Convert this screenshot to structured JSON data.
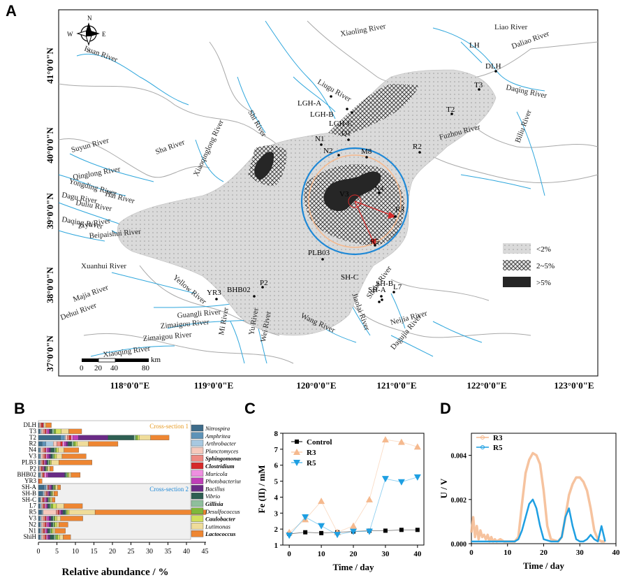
{
  "panels": {
    "a": "A",
    "b": "B",
    "c": "C",
    "d": "D"
  },
  "map": {
    "lat_ticks": [
      "41°0'0\"N",
      "40°0'0\"N",
      "39°0'0\"N",
      "38°0'0\"N",
      "37°0'0\"N"
    ],
    "lon_ticks": [
      "118°0'0\"E",
      "119°0'0\"E",
      "120°0'0\"E",
      "121°0'0\"E",
      "122°0'0\"E",
      "123°0'0\"E"
    ],
    "compass": {
      "n": "N",
      "s": "S",
      "e": "E",
      "w": "W"
    },
    "scale": [
      "0",
      "20",
      "40",
      "80",
      "km"
    ],
    "legend": [
      {
        "label": "<2%",
        "color": "#d9d9d9"
      },
      {
        "label": "2~5%",
        "color": "#555555"
      },
      {
        "label": ">5%",
        "color": "#262626"
      }
    ],
    "rivers": [
      "Luan River",
      "Xiaoling River",
      "Liao River",
      "Daliao River",
      "Liugu River",
      "Daqing River",
      "Shi River",
      "Xiaoqinglong River",
      "Sha River",
      "Suyun River",
      "Yongding River",
      "Hai River",
      "Dagu River",
      "Duliu River",
      "Daqing River",
      "Ziya River",
      "Beipaishui River",
      "Xuanhui River",
      "Fuzhou River",
      "Biliu River",
      "Dehui River",
      "Majia River",
      "Yellow River",
      "Guangli River",
      "Zimaigou River",
      "Zimaigou River",
      "Mi River",
      "Yu River",
      "Wei River",
      "Jiaolai River",
      "Wang River",
      "Shahe River",
      "Neijia River",
      "Dagujia River",
      "Xiaoqing River",
      "Qinglong River"
    ],
    "sites": [
      "LH",
      "DLH",
      "T3",
      "T2",
      "LGH-A",
      "LGH-B",
      "LGH-C",
      "Q1",
      "N1",
      "N2",
      "M8",
      "R2",
      "V3",
      "N4",
      "R3",
      "R5",
      "PLB03",
      "P2",
      "BHB02",
      "YR3",
      "SH-C",
      "SH-B",
      "SH-A",
      "L7"
    ]
  },
  "panel_b": {
    "xlabel": "Relative abundance / %",
    "xticks": [
      "0",
      "5",
      "10",
      "15",
      "20",
      "25",
      "30",
      "35",
      "40",
      "45"
    ],
    "section1": "Cross-section 1",
    "section2": "Cross-section 2",
    "rows": [
      "DLH",
      "T3",
      "T2",
      "R2",
      "N4",
      "V3",
      "PLB3",
      "P2",
      "BHB02",
      "YR3",
      "SH-A",
      "SH-B",
      "SH-C",
      "L7",
      "R5",
      "V3",
      "N2",
      "N1",
      "ShiH"
    ],
    "taxa": [
      {
        "name": "Nitrospira",
        "color": "#3d6c8a",
        "bold": false
      },
      {
        "name": "Amphritea",
        "color": "#5e93b8",
        "bold": false
      },
      {
        "name": "Arthrobacter",
        "color": "#a7c8e0",
        "bold": false
      },
      {
        "name": "Planctomyces",
        "color": "#f6c9bc",
        "bold": false
      },
      {
        "name": "Sphingomonas",
        "color": "#ee8a83",
        "bold": true
      },
      {
        "name": "Clostridium",
        "color": "#d62a2a",
        "bold": true
      },
      {
        "name": "Muricola",
        "color": "#ee8fe0",
        "bold": false
      },
      {
        "name": "Photobacterium",
        "color": "#c03fb8",
        "bold": false
      },
      {
        "name": "Bacillus",
        "color": "#6a2b86",
        "bold": false
      },
      {
        "name": "Vibrio",
        "color": "#2e5f52",
        "bold": false
      },
      {
        "name": "Gillisia",
        "color": "#8fbf9c",
        "bold": true
      },
      {
        "name": "Desulfococcus",
        "color": "#7fb83a",
        "bold": false
      },
      {
        "name": "Caulobacter",
        "color": "#d2e05d",
        "bold": true
      },
      {
        "name": "Lutimonas",
        "color": "#efdc9a",
        "bold": false
      },
      {
        "name": "Lactococcus",
        "color": "#ee8632",
        "bold": true
      }
    ],
    "values": [
      [
        0.2,
        0,
        0,
        0.3,
        0.3,
        0.5,
        0.2,
        0,
        0,
        0,
        0,
        0,
        0,
        0.5,
        1.5
      ],
      [
        0.3,
        0.2,
        0.3,
        0.5,
        0.5,
        0.3,
        0.3,
        0.5,
        0.3,
        0.5,
        0.5,
        0.5,
        1.5,
        2,
        3.5
      ],
      [
        6,
        1,
        0.3,
        0.5,
        0.5,
        0.5,
        0.5,
        1.5,
        8,
        7,
        0.5,
        0.5,
        0.5,
        3,
        5
      ],
      [
        1,
        1,
        2,
        1,
        1,
        0.5,
        0.5,
        0.5,
        0.5,
        1,
        0.5,
        0.5,
        0.5,
        3,
        8
      ],
      [
        0.2,
        0.2,
        0.3,
        0.5,
        0.5,
        0.3,
        0.3,
        0.5,
        0.5,
        1,
        0.3,
        0.3,
        0.5,
        1.5,
        4
      ],
      [
        0.2,
        0.2,
        0.3,
        0.5,
        0.5,
        0.3,
        0.3,
        0.5,
        0.5,
        0.5,
        0.3,
        0.3,
        0.5,
        1.5,
        6.5
      ],
      [
        0.2,
        0.2,
        0.2,
        0.3,
        0.3,
        0.3,
        0.2,
        0.3,
        0.3,
        0.3,
        0.3,
        0.3,
        0.3,
        2,
        9
      ],
      [
        0.2,
        0,
        0,
        0.3,
        0.3,
        0.3,
        0.2,
        0.2,
        0.2,
        0.3,
        0.2,
        0.2,
        0.2,
        0.5,
        0.9
      ],
      [
        0.2,
        0.2,
        0.3,
        0.3,
        0.3,
        0.3,
        0.5,
        0.5,
        4.5,
        0.3,
        0.3,
        0.3,
        0.3,
        0.5,
        2.5
      ],
      [
        0,
        0,
        0,
        0,
        0,
        0.2,
        0,
        0,
        0,
        0,
        0,
        0,
        0,
        0,
        0.8
      ],
      [
        1.5,
        0.5,
        0.3,
        0.2,
        0.2,
        0.2,
        0.2,
        0.3,
        0.3,
        0.3,
        0.2,
        0.3,
        0.2,
        0.5,
        0.8
      ],
      [
        1,
        0.3,
        0.3,
        0.3,
        0.3,
        0.2,
        0.2,
        0.2,
        0.3,
        0.2,
        0.2,
        0.2,
        0.2,
        0.3,
        1
      ],
      [
        0.3,
        0.2,
        0.2,
        0.3,
        0.3,
        0.3,
        0.3,
        0.3,
        0.3,
        0.2,
        0.2,
        0.2,
        0.3,
        0.3,
        0.8
      ],
      [
        0.3,
        0.2,
        0.3,
        0.3,
        0.3,
        0.3,
        0.3,
        0.3,
        0.3,
        0.5,
        0.3,
        0.5,
        1,
        2,
        5
      ],
      [
        0.8,
        0.2,
        0.3,
        3.5,
        0.5,
        0.3,
        0.2,
        0.3,
        0.5,
        0.7,
        0.2,
        0.3,
        0.5,
        7,
        30
      ],
      [
        0.3,
        0.2,
        0.3,
        0.5,
        0.5,
        0.3,
        0.3,
        0.5,
        0.5,
        0.5,
        0.3,
        0.3,
        0.5,
        1,
        6
      ],
      [
        0.3,
        0.2,
        0.3,
        0.5,
        0.5,
        0.3,
        0.3,
        0.5,
        0.5,
        0.5,
        0.3,
        0.3,
        0.5,
        0.5,
        2.5
      ],
      [
        0.3,
        0.2,
        0.3,
        0.3,
        0.3,
        0.3,
        0.3,
        0.3,
        0.3,
        0.5,
        0.3,
        0.3,
        0.3,
        0.5,
        2.8
      ],
      [
        0.3,
        0.2,
        0.3,
        0.5,
        0.5,
        0.3,
        0.3,
        0.3,
        0.5,
        1,
        0.5,
        0.5,
        0.5,
        1,
        2
      ]
    ]
  },
  "chart_data": [
    {
      "type": "line",
      "panel": "C",
      "xlabel": "Time / day",
      "ylabel": "Fe (II) / mM",
      "xlim": [
        -2,
        42
      ],
      "ylim": [
        1,
        8
      ],
      "xticks": [
        "0",
        "10",
        "20",
        "30",
        "40"
      ],
      "yticks": [
        "1",
        "2",
        "3",
        "4",
        "5",
        "6",
        "7",
        "8"
      ],
      "x": [
        0,
        5,
        10,
        15,
        20,
        25,
        30,
        35,
        40
      ],
      "series": [
        {
          "name": "Control",
          "color": "#000000",
          "marker": "square",
          "values": [
            1.7,
            1.8,
            1.75,
            1.8,
            1.85,
            1.9,
            1.9,
            1.95,
            1.95
          ]
        },
        {
          "name": "R3",
          "color": "#f5b98e",
          "marker": "triangle-up",
          "values": [
            1.8,
            2.6,
            3.75,
            1.8,
            2.2,
            3.85,
            7.6,
            7.45,
            7.15
          ]
        },
        {
          "name": "R5",
          "color": "#1e9fe2",
          "marker": "triangle-down",
          "values": [
            1.6,
            2.75,
            2.2,
            1.65,
            1.85,
            1.85,
            5.15,
            4.95,
            5.25
          ]
        }
      ]
    },
    {
      "type": "line",
      "panel": "D",
      "xlabel": "Time / day",
      "ylabel": "U / V",
      "xlim": [
        0,
        40
      ],
      "ylim": [
        0,
        0.005
      ],
      "xticks": [
        "0",
        "10",
        "20",
        "30",
        "40"
      ],
      "yticks": [
        "0.000",
        "0.002",
        "0.004"
      ],
      "series": [
        {
          "name": "R3",
          "color": "#f5b98e",
          "x": [
            0,
            0.5,
            1,
            1.5,
            2,
            2.5,
            3,
            3.5,
            4,
            4.5,
            5,
            5.5,
            6,
            6.5,
            7,
            8,
            9,
            10,
            11,
            12,
            13,
            14,
            15,
            16,
            17,
            18,
            19,
            20,
            21,
            22,
            24,
            25,
            26,
            27,
            28,
            29,
            30,
            31,
            32,
            33,
            34,
            35,
            36,
            37
          ],
          "values": [
            0.0005,
            0.0012,
            0.0003,
            0.0008,
            0.0002,
            0.0006,
            0.0003,
            0.0004,
            0.0002,
            0.0004,
            0.0001,
            0.0003,
            0.0001,
            0.0002,
            0.0001,
            0.0002,
            0.0001,
            0.0001,
            0.0001,
            0.0001,
            0.0003,
            0.0018,
            0.0032,
            0.0038,
            0.0041,
            0.004,
            0.0036,
            0.0024,
            0.0008,
            0.0002,
            0.0001,
            0.0003,
            0.0012,
            0.0022,
            0.0027,
            0.003,
            0.003,
            0.0028,
            0.0024,
            0.0016,
            0.0006,
            0.0002,
            0.0001,
            0.0001
          ]
        },
        {
          "name": "R5",
          "color": "#1e9fe2",
          "x": [
            0,
            2,
            4,
            6,
            8,
            10,
            12,
            13,
            14,
            15,
            16,
            17,
            18,
            19,
            20,
            22,
            24,
            25,
            26,
            27,
            28,
            29,
            30,
            31,
            32,
            33,
            34,
            35,
            36,
            37
          ],
          "values": [
            0.0001,
            0.0001,
            0.0001,
            0.0001,
            0.0001,
            0.0001,
            0.0001,
            0.0002,
            0.0006,
            0.0012,
            0.0018,
            0.002,
            0.0016,
            0.0008,
            0.0002,
            0.0001,
            0.0001,
            0.0003,
            0.0012,
            0.0016,
            0.0008,
            0.0002,
            0.0001,
            0.0001,
            0.0002,
            0.0004,
            0.0002,
            0.0001,
            0.0008,
            0.0001
          ]
        }
      ]
    }
  ]
}
